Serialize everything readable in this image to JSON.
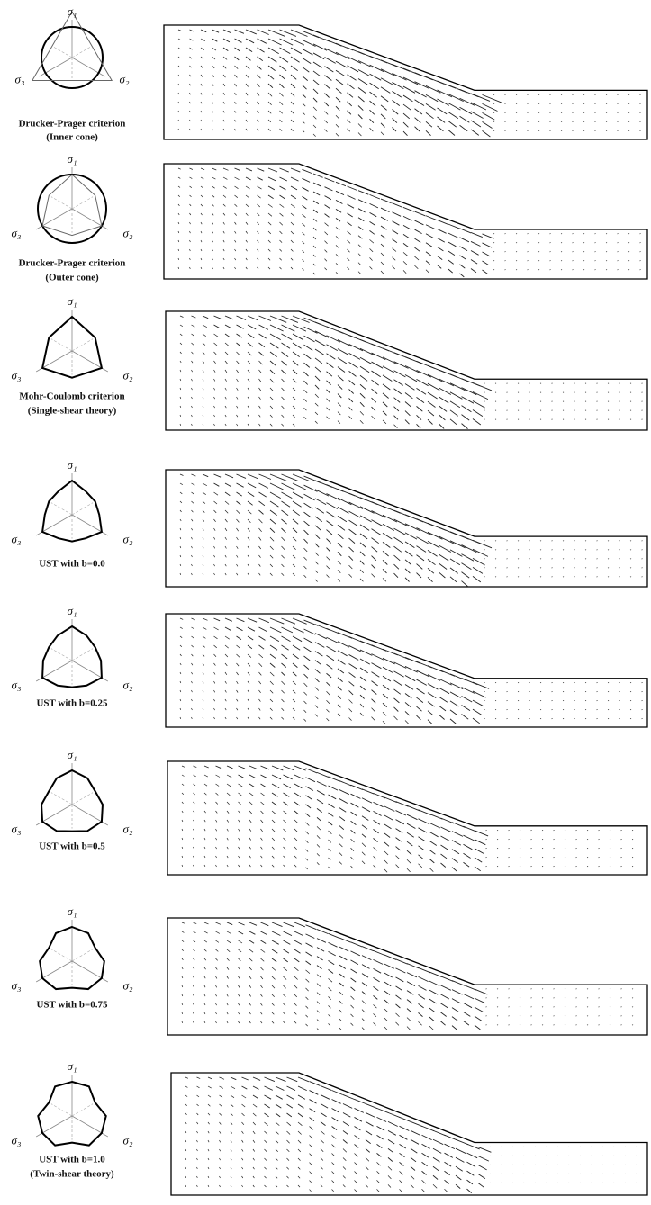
{
  "panels": [
    {
      "axes": [
        "σ₁",
        "σ₂",
        "σ₃"
      ],
      "caption": [
        "Drucker-Prager criterion",
        "(Inner cone)"
      ]
    },
    {
      "axes": [
        "σ₁",
        "σ₂",
        "σ₃"
      ],
      "caption": [
        "Drucker-Prager criterion",
        "(Outer cone)"
      ]
    },
    {
      "axes": [
        "σ₁",
        "σ₂",
        "σ₃"
      ],
      "caption": [
        "Mohr-Coulomb criterion",
        "(Single-shear theory)"
      ]
    },
    {
      "axes": [
        "σ₁",
        "σ₂",
        "σ₃"
      ],
      "caption": [
        "UST with b=0.0"
      ]
    },
    {
      "axes": [
        "σ₁",
        "σ₂",
        "σ₃"
      ],
      "caption": [
        "UST with b=0.25"
      ]
    },
    {
      "axes": [
        "σ₁",
        "σ₂",
        "σ₃"
      ],
      "caption": [
        "UST with b=0.5"
      ]
    },
    {
      "axes": [
        "σ₁",
        "σ₂",
        "σ₃"
      ],
      "caption": [
        "UST with b=0.75"
      ]
    },
    {
      "axes": [
        "σ₁",
        "σ₂",
        "σ₃"
      ],
      "caption": [
        "UST with b=1.0",
        "(Twin-shear theory)"
      ]
    }
  ]
}
